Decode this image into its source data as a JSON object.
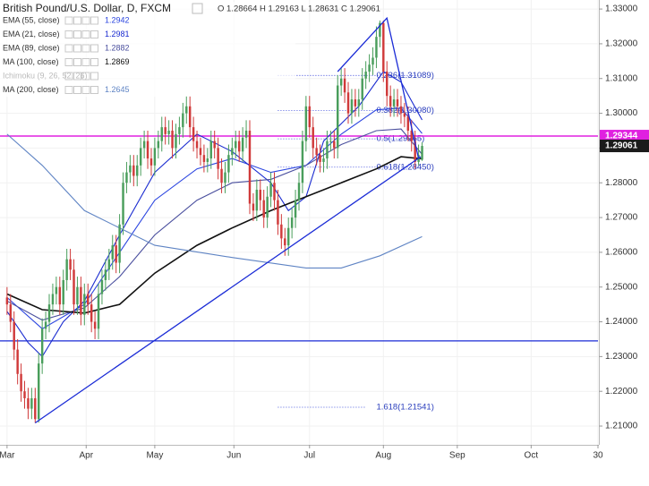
{
  "chart_data": {
    "type": "candlestick",
    "title": "British Pound/U.S. Dollar, D, FXCM",
    "ohlc_text": "O 1.28664 H 1.29163 L 1.28631 C 1.29061",
    "up_color": "#4a9e5c",
    "down_color": "#d03a3a",
    "open": [
      1.247,
      1.245,
      1.24,
      1.232,
      1.225,
      1.22,
      1.218,
      1.215,
      1.218,
      1.212,
      1.228,
      1.238,
      1.24,
      1.245,
      1.248,
      1.25,
      1.245,
      1.252,
      1.258,
      1.255,
      1.245,
      1.25,
      1.242,
      1.248,
      1.245,
      1.24,
      1.238,
      1.248,
      1.252,
      1.255,
      1.258,
      1.262,
      1.257,
      1.268,
      1.28,
      1.283,
      1.285,
      1.282,
      1.285,
      1.29,
      1.292,
      1.287,
      1.285,
      1.29,
      1.292,
      1.296,
      1.294,
      1.295,
      1.29,
      1.294,
      1.296,
      1.3,
      1.302,
      1.296,
      1.292,
      1.29,
      1.288,
      1.286,
      1.287,
      1.292,
      1.29,
      1.284,
      1.28,
      1.283,
      1.288,
      1.29,
      1.292,
      1.289,
      1.293,
      1.295,
      1.274,
      1.272,
      1.278,
      1.275,
      1.27,
      1.276,
      1.28,
      1.275,
      1.268,
      1.264,
      1.262,
      1.267,
      1.27,
      1.275,
      1.28,
      1.292,
      1.302,
      1.296,
      1.29,
      1.288,
      1.286,
      1.287,
      1.292,
      1.292,
      1.29,
      1.308,
      1.31,
      1.306,
      1.3,
      1.304,
      1.302,
      1.304,
      1.31,
      1.312,
      1.314,
      1.316,
      1.322,
      1.326,
      1.312,
      1.305,
      1.302,
      1.304,
      1.302,
      1.3,
      1.299,
      1.295,
      1.292,
      1.286,
      1.28664
    ],
    "high": [
      1.25,
      1.248,
      1.243,
      1.235,
      1.228,
      1.223,
      1.221,
      1.221,
      1.221,
      1.231,
      1.241,
      1.243,
      1.248,
      1.251,
      1.253,
      1.253,
      1.255,
      1.261,
      1.261,
      1.258,
      1.253,
      1.253,
      1.251,
      1.251,
      1.248,
      1.243,
      1.251,
      1.255,
      1.258,
      1.261,
      1.265,
      1.265,
      1.271,
      1.283,
      1.286,
      1.288,
      1.288,
      1.288,
      1.293,
      1.295,
      1.295,
      1.29,
      1.293,
      1.295,
      1.299,
      1.299,
      1.298,
      1.298,
      1.297,
      1.299,
      1.303,
      1.305,
      1.305,
      1.299,
      1.295,
      1.293,
      1.291,
      1.29,
      1.295,
      1.295,
      1.293,
      1.287,
      1.286,
      1.291,
      1.293,
      1.295,
      1.295,
      1.296,
      1.298,
      1.298,
      1.277,
      1.281,
      1.281,
      1.278,
      1.279,
      1.283,
      1.283,
      1.278,
      1.271,
      1.267,
      1.27,
      1.273,
      1.278,
      1.283,
      1.295,
      1.305,
      1.305,
      1.299,
      1.293,
      1.291,
      1.29,
      1.295,
      1.295,
      1.295,
      1.311,
      1.313,
      1.313,
      1.309,
      1.307,
      1.307,
      1.307,
      1.313,
      1.315,
      1.317,
      1.319,
      1.325,
      1.3267,
      1.3267,
      1.315,
      1.308,
      1.307,
      1.307,
      1.305,
      1.303,
      1.302,
      1.298,
      1.295,
      1.291,
      1.29163
    ],
    "low": [
      1.242,
      1.237,
      1.229,
      1.222,
      1.217,
      1.215,
      1.212,
      1.212,
      1.2109,
      1.211,
      1.225,
      1.235,
      1.237,
      1.242,
      1.245,
      1.242,
      1.242,
      1.249,
      1.252,
      1.242,
      1.242,
      1.239,
      1.239,
      1.242,
      1.237,
      1.235,
      1.235,
      1.245,
      1.249,
      1.252,
      1.255,
      1.254,
      1.254,
      1.265,
      1.277,
      1.28,
      1.279,
      1.279,
      1.282,
      1.287,
      1.284,
      1.282,
      1.282,
      1.287,
      1.289,
      1.291,
      1.291,
      1.287,
      1.287,
      1.291,
      1.293,
      1.297,
      1.293,
      1.289,
      1.287,
      1.285,
      1.283,
      1.283,
      1.284,
      1.287,
      1.281,
      1.277,
      1.277,
      1.28,
      1.285,
      1.287,
      1.286,
      1.286,
      1.29,
      1.271,
      1.269,
      1.269,
      1.272,
      1.267,
      1.267,
      1.273,
      1.272,
      1.265,
      1.261,
      1.259,
      1.259,
      1.264,
      1.267,
      1.272,
      1.277,
      1.289,
      1.293,
      1.287,
      1.285,
      1.283,
      1.283,
      1.284,
      1.289,
      1.287,
      1.287,
      1.305,
      1.303,
      1.297,
      1.297,
      1.299,
      1.299,
      1.301,
      1.307,
      1.309,
      1.311,
      1.313,
      1.319,
      1.309,
      1.302,
      1.299,
      1.299,
      1.299,
      1.297,
      1.296,
      1.292,
      1.289,
      1.284,
      1.285,
      1.28631
    ],
    "close": [
      1.245,
      1.24,
      1.232,
      1.225,
      1.22,
      1.218,
      1.215,
      1.218,
      1.212,
      1.228,
      1.238,
      1.24,
      1.245,
      1.248,
      1.25,
      1.245,
      1.252,
      1.258,
      1.255,
      1.245,
      1.25,
      1.242,
      1.248,
      1.245,
      1.24,
      1.238,
      1.248,
      1.252,
      1.255,
      1.258,
      1.262,
      1.257,
      1.268,
      1.28,
      1.283,
      1.285,
      1.282,
      1.285,
      1.29,
      1.292,
      1.287,
      1.285,
      1.29,
      1.292,
      1.296,
      1.294,
      1.295,
      1.29,
      1.294,
      1.296,
      1.3,
      1.302,
      1.296,
      1.292,
      1.29,
      1.288,
      1.286,
      1.287,
      1.292,
      1.29,
      1.284,
      1.28,
      1.283,
      1.288,
      1.29,
      1.292,
      1.289,
      1.293,
      1.295,
      1.274,
      1.272,
      1.278,
      1.275,
      1.27,
      1.276,
      1.28,
      1.275,
      1.268,
      1.264,
      1.262,
      1.267,
      1.27,
      1.275,
      1.28,
      1.292,
      1.302,
      1.296,
      1.29,
      1.288,
      1.286,
      1.287,
      1.292,
      1.292,
      1.29,
      1.308,
      1.31,
      1.306,
      1.3,
      1.304,
      1.302,
      1.304,
      1.31,
      1.312,
      1.314,
      1.316,
      1.322,
      1.326,
      1.312,
      1.305,
      1.302,
      1.304,
      1.302,
      1.3,
      1.299,
      1.295,
      1.292,
      1.286,
      1.288,
      1.29061
    ],
    "xlim": [
      -2,
      168
    ],
    "xticks": [
      {
        "value": 0,
        "label": "Mar"
      },
      {
        "value": 22.5,
        "label": "Apr"
      },
      {
        "value": 42,
        "label": "May"
      },
      {
        "value": 64.5,
        "label": "Jun"
      },
      {
        "value": 86,
        "label": "Jul"
      },
      {
        "value": 107,
        "label": "Aug"
      },
      {
        "value": 128,
        "label": "Sep"
      },
      {
        "value": 149,
        "label": "Oct"
      },
      {
        "value": 168,
        "label": "30"
      }
    ],
    "ylim": [
      1.2046,
      1.3326
    ],
    "yticks": [
      {
        "value": 1.21,
        "label": "1.21000"
      },
      {
        "value": 1.22,
        "label": "1.22000"
      },
      {
        "value": 1.23,
        "label": "1.23000"
      },
      {
        "value": 1.24,
        "label": "1.24000"
      },
      {
        "value": 1.25,
        "label": "1.25000"
      },
      {
        "value": 1.26,
        "label": "1.26000"
      },
      {
        "value": 1.27,
        "label": "1.27000"
      },
      {
        "value": 1.28,
        "label": "1.28000"
      },
      {
        "value": 1.29,
        "label": "1.29000"
      },
      {
        "value": 1.3,
        "label": "1.30000"
      },
      {
        "value": 1.31,
        "label": "1.31000"
      },
      {
        "value": 1.32,
        "label": "1.32000"
      },
      {
        "value": 1.33,
        "label": "1.33000"
      }
    ],
    "grid": true,
    "series": [
      {
        "name": "EMA (55, close)",
        "value": 1.2942,
        "color": "#2b45e0",
        "x": [
          0,
          10,
          22,
          32,
          42,
          54,
          64,
          75,
          85,
          95,
          105,
          112,
          118
        ],
        "values": [
          1.247,
          1.238,
          1.245,
          1.26,
          1.275,
          1.284,
          1.287,
          1.283,
          1.285,
          1.294,
          1.301,
          1.3015,
          1.2942
        ]
      },
      {
        "name": "EMA (21, close)",
        "value": 1.2981,
        "color": "#1a2bd0",
        "x": [
          0,
          6,
          10,
          16,
          22,
          32,
          42,
          54,
          64,
          75,
          80,
          85,
          90,
          100,
          107,
          112,
          118
        ],
        "values": [
          1.243,
          1.234,
          1.23,
          1.24,
          1.246,
          1.265,
          1.283,
          1.294,
          1.289,
          1.28,
          1.272,
          1.276,
          1.292,
          1.302,
          1.312,
          1.309,
          1.2981
        ]
      },
      {
        "name": "EMA (89, close)",
        "value": 1.2882,
        "color": "#4a4f9e",
        "x": [
          0,
          10,
          22,
          32,
          42,
          54,
          64,
          75,
          85,
          95,
          105,
          112,
          118
        ],
        "values": [
          1.246,
          1.2405,
          1.244,
          1.253,
          1.265,
          1.275,
          1.28,
          1.281,
          1.285,
          1.291,
          1.295,
          1.2955,
          1.2882
        ]
      },
      {
        "name": "MA (100, close)",
        "value": 1.2869,
        "color": "#111111",
        "x": [
          0,
          10,
          22,
          32,
          42,
          54,
          64,
          75,
          85,
          95,
          105,
          112,
          118
        ],
        "values": [
          1.248,
          1.2435,
          1.2425,
          1.245,
          1.254,
          1.262,
          1.267,
          1.272,
          1.276,
          1.28,
          1.284,
          1.2875,
          1.2869
        ]
      },
      {
        "name": "MA (200, close)",
        "value": 1.2645,
        "color": "#5f84c4",
        "x": [
          0,
          10,
          22,
          42,
          64,
          85,
          95,
          106,
          118
        ],
        "values": [
          1.294,
          1.285,
          1.272,
          1.262,
          1.2585,
          1.2555,
          1.2555,
          1.259,
          1.2645
        ]
      }
    ],
    "ichimoku_name": "Ichimoku (9, 26, 52, 26)",
    "drawing_color": "#1a2bd6",
    "trendlines": [
      {
        "x": [
          8,
          117.6
        ],
        "y": [
          1.2109,
          1.2875
        ]
      },
      {
        "x": [
          94,
          108,
          117
        ],
        "y": [
          1.312,
          1.3274,
          1.287
        ]
      }
    ],
    "support_line": 1.2345,
    "fib_x": [
      77,
      118
    ],
    "fib_levels": [
      {
        "value": 1.31089,
        "label": "0.236(1.31089)"
      },
      {
        "value": 1.3008,
        "label": "0.382(1.30080)"
      },
      {
        "value": 1.29265,
        "label": "0.5(1.29265)"
      },
      {
        "value": 1.2845,
        "label": "0.618(1.28450)"
      },
      {
        "value": 1.21541,
        "label": "1.618(1.21541)"
      }
    ],
    "hline": {
      "value": 1.29344,
      "color": "#e020e0"
    },
    "last_price": 1.29061
  }
}
